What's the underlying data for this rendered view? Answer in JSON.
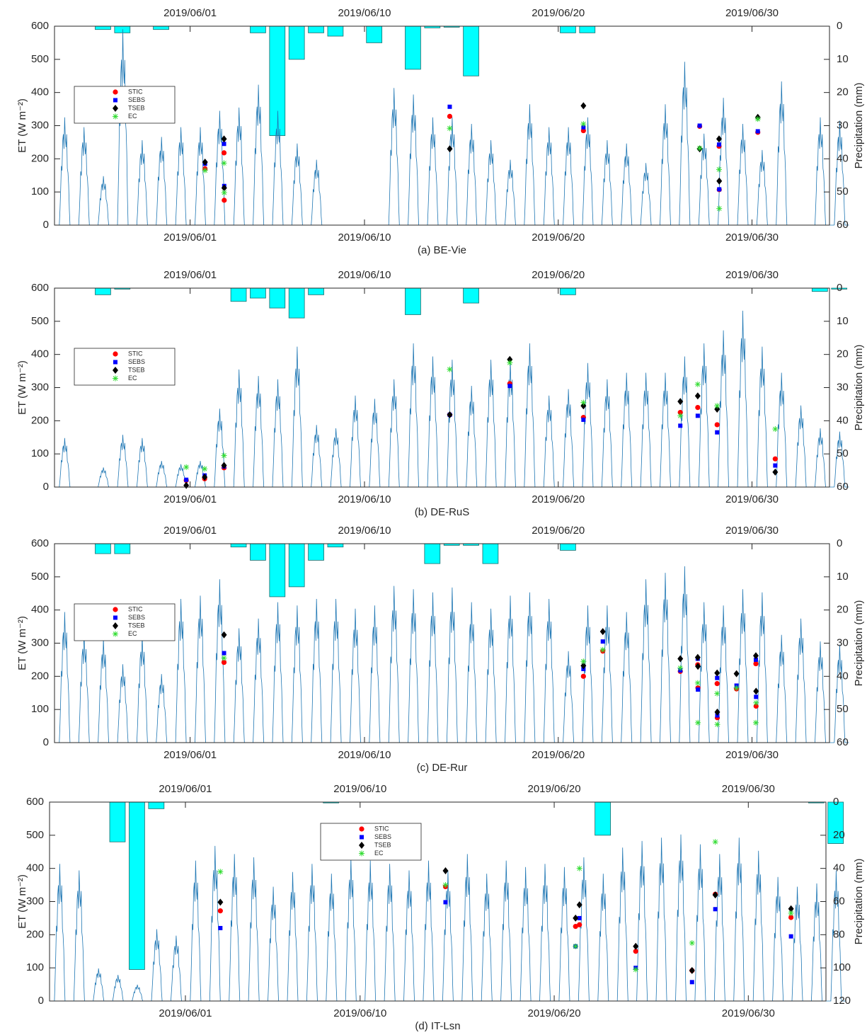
{
  "chart_data": [
    {
      "type": "line",
      "title": "(a) BE-Vie",
      "ylabel": "ET (W m⁻²)",
      "y2label": "Precipitation (mm)",
      "xlim": [
        -7,
        33
      ],
      "xticks": [
        {
          "value": 0,
          "label": "2019/06/01"
        },
        {
          "value": 9,
          "label": "2019/06/10"
        },
        {
          "value": 19,
          "label": "2019/06/20"
        },
        {
          "value": 29,
          "label": "2019/06/30"
        }
      ],
      "ylim": [
        0,
        600
      ],
      "yticks": [
        0,
        100,
        200,
        300,
        400,
        500,
        600
      ],
      "y2lim": [
        0,
        60
      ],
      "y2ticks": [
        0,
        10,
        20,
        30,
        40,
        50,
        60
      ],
      "y2_reversed": true,
      "legend": "upper left",
      "et": {
        "color": "#1f77b4",
        "x": [
          -7,
          -6,
          -5,
          -4,
          -3,
          -2,
          -1,
          0,
          1,
          2,
          3,
          4,
          5,
          6,
          7,
          8,
          9,
          10,
          11,
          12,
          13,
          14,
          15,
          16,
          17,
          18,
          19,
          20,
          21,
          22,
          23,
          24,
          25,
          26,
          27,
          28,
          29,
          30,
          31,
          32,
          33
        ],
        "values": [
          330,
          300,
          150,
          600,
          260,
          270,
          300,
          300,
          350,
          360,
          430,
          350,
          250,
          200,
          0,
          0,
          0,
          420,
          400,
          330,
          330,
          310,
          260,
          200,
          370,
          300,
          300,
          330,
          260,
          250,
          190,
          370,
          500,
          280,
          390,
          310,
          230,
          440,
          0,
          330,
          320
        ]
      },
      "precip": {
        "color": "#00ffff",
        "axis": "y2",
        "x": [
          -5,
          -4,
          -2,
          3,
          4,
          5,
          6,
          7,
          9,
          11,
          12,
          13,
          14,
          19,
          20
        ],
        "values": [
          1,
          2,
          1,
          2,
          33,
          10,
          2,
          3,
          5,
          13,
          0.5,
          0.3,
          15,
          2,
          2
        ]
      },
      "scatter_x": [
        0.77,
        1.75,
        1.76,
        13.4,
        20.3,
        26.3,
        27.3,
        27.31,
        29.3
      ],
      "series": [
        {
          "name": "STIC",
          "color": "#ff0000",
          "marker": "circle",
          "values": [
            170,
            218,
            75,
            328,
            285,
            298,
            238,
            107,
            280
          ]
        },
        {
          "name": "SEBS",
          "color": "#0000ff",
          "marker": "square",
          "values": [
            185,
            245,
            118,
            357,
            295,
            300,
            243,
            108,
            283
          ]
        },
        {
          "name": "TSEB",
          "color": "#000000",
          "marker": "diamond",
          "values": [
            190,
            260,
            112,
            230,
            360,
            230,
            260,
            133,
            325
          ]
        },
        {
          "name": "EC",
          "color": "#33dd33",
          "marker": "asterisk",
          "values": [
            165,
            187,
            98,
            292,
            305,
            232,
            168,
            50,
            320
          ]
        }
      ]
    },
    {
      "type": "line",
      "title": "(b) DE-RuS",
      "ylabel": "ET (W m⁻²)",
      "y2label": "Precipitation (mm)",
      "xlim": [
        -7,
        33
      ],
      "xticks": [
        {
          "value": 0,
          "label": "2019/06/01"
        },
        {
          "value": 9,
          "label": "2019/06/10"
        },
        {
          "value": 19,
          "label": "2019/06/20"
        },
        {
          "value": 29,
          "label": "2019/06/30"
        }
      ],
      "ylim": [
        0,
        600
      ],
      "yticks": [
        0,
        100,
        200,
        300,
        400,
        500,
        600
      ],
      "y2lim": [
        0,
        60
      ],
      "y2ticks": [
        0,
        10,
        20,
        30,
        40,
        50,
        60
      ],
      "y2_reversed": true,
      "legend": "upper left",
      "et": {
        "color": "#1f77b4",
        "x": [
          -7,
          -6,
          -5,
          -4,
          -3,
          -2,
          -1,
          0,
          1,
          2,
          3,
          4,
          5,
          6,
          7,
          8,
          9,
          10,
          11,
          12,
          13,
          14,
          15,
          16,
          17,
          18,
          19,
          20,
          21,
          22,
          23,
          24,
          25,
          26,
          27,
          28,
          29,
          30,
          31,
          32,
          33
        ],
        "values": [
          150,
          0,
          60,
          160,
          150,
          80,
          70,
          80,
          240,
          360,
          340,
          330,
          430,
          190,
          180,
          280,
          270,
          330,
          440,
          400,
          390,
          310,
          390,
          390,
          440,
          280,
          300,
          380,
          330,
          350,
          350,
          350,
          400,
          440,
          480,
          540,
          430,
          350,
          250,
          180,
          170
        ]
      },
      "precip": {
        "color": "#00ffff",
        "axis": "y2",
        "x": [
          -5,
          -4,
          2,
          3,
          4,
          5,
          6,
          11,
          14,
          19,
          32,
          33
        ],
        "values": [
          2,
          0.3,
          4,
          3,
          6,
          9,
          2,
          8,
          4.5,
          2,
          1,
          0.3
        ]
      },
      "scatter_x": [
        -0.2,
        0.75,
        1.75,
        13.4,
        16.5,
        20.3,
        25.3,
        26.2,
        27.2,
        30.2
      ],
      "series": [
        {
          "name": "STIC",
          "color": "#ff0000",
          "marker": "circle",
          "values": [
            20,
            25,
            58,
            218,
            312,
            210,
            225,
            240,
            188,
            85
          ]
        },
        {
          "name": "SEBS",
          "color": "#0000ff",
          "marker": "square",
          "values": [
            22,
            35,
            62,
            218,
            305,
            203,
            185,
            215,
            165,
            65
          ]
        },
        {
          "name": "TSEB",
          "color": "#000000",
          "marker": "diamond",
          "values": [
            5,
            30,
            65,
            218,
            385,
            245,
            258,
            275,
            235,
            45
          ]
        },
        {
          "name": "EC",
          "color": "#33dd33",
          "marker": "asterisk",
          "values": [
            60,
            55,
            95,
            355,
            375,
            255,
            215,
            310,
            245,
            175
          ]
        }
      ]
    },
    {
      "type": "line",
      "title": "(c) DE-Rur",
      "ylabel": "ET (W m⁻²)",
      "y2label": "Precipitation (mm)",
      "xlim": [
        -7,
        33
      ],
      "xticks": [
        {
          "value": 0,
          "label": "2019/06/01"
        },
        {
          "value": 9,
          "label": "2019/06/10"
        },
        {
          "value": 19,
          "label": "2019/06/20"
        },
        {
          "value": 29,
          "label": "2019/06/30"
        }
      ],
      "ylim": [
        0,
        600
      ],
      "yticks": [
        0,
        100,
        200,
        300,
        400,
        500,
        600
      ],
      "y2lim": [
        0,
        60
      ],
      "y2ticks": [
        0,
        10,
        20,
        30,
        40,
        50,
        60
      ],
      "y2_reversed": true,
      "legend": "upper left",
      "et": {
        "color": "#1f77b4",
        "x": [
          -7,
          -6,
          -5,
          -4,
          -3,
          -2,
          -1,
          0,
          1,
          2,
          3,
          4,
          5,
          6,
          7,
          8,
          9,
          10,
          11,
          12,
          13,
          14,
          15,
          16,
          17,
          18,
          19,
          20,
          21,
          22,
          23,
          24,
          25,
          26,
          27,
          28,
          29,
          30,
          31,
          32,
          33
        ],
        "values": [
          400,
          340,
          320,
          240,
          330,
          210,
          440,
          450,
          500,
          350,
          380,
          430,
          420,
          440,
          440,
          410,
          420,
          480,
          470,
          460,
          475,
          430,
          410,
          450,
          460,
          440,
          280,
          420,
          420,
          400,
          500,
          520,
          540,
          430,
          420,
          470,
          460,
          330,
          380,
          310,
          300
        ]
      },
      "precip": {
        "color": "#00ffff",
        "axis": "y2",
        "x": [
          -5,
          -4,
          2,
          3,
          4,
          5,
          6,
          7,
          12,
          13,
          14,
          15,
          19
        ],
        "values": [
          3,
          3,
          1,
          5,
          16,
          13,
          5,
          1,
          6,
          0.5,
          0.5,
          6,
          2
        ]
      },
      "scatter_x": [
        1.75,
        20.3,
        21.3,
        25.3,
        26.2,
        26.21,
        27.2,
        27.21,
        28.2,
        29.2,
        29.21
      ],
      "series": [
        {
          "name": "STIC",
          "color": "#ff0000",
          "marker": "circle",
          "values": [
            242,
            200,
            276,
            215,
            235,
            165,
            178,
            75,
            162,
            238,
            110
          ]
        },
        {
          "name": "SEBS",
          "color": "#0000ff",
          "marker": "square",
          "values": [
            270,
            222,
            305,
            218,
            253,
            160,
            195,
            82,
            172,
            250,
            138
          ]
        },
        {
          "name": "TSEB",
          "color": "#000000",
          "marker": "diamond",
          "values": [
            325,
            232,
            335,
            253,
            257,
            230,
            210,
            92,
            208,
            262,
            155
          ]
        },
        {
          "name": "EC",
          "color": "#33dd33",
          "marker": "asterisk",
          "values": [
            255,
            245,
            280,
            225,
            180,
            60,
            148,
            55,
            165,
            60,
            120
          ]
        }
      ]
    },
    {
      "type": "line",
      "title": "(d) IT-Lsn",
      "ylabel": "ET (W m⁻²)",
      "y2label": "Precipitation (mm)",
      "xlim": [
        -7,
        33
      ],
      "xticks": [
        {
          "value": 0,
          "label": "2019/06/01"
        },
        {
          "value": 9,
          "label": "2019/06/10"
        },
        {
          "value": 19,
          "label": "2019/06/20"
        },
        {
          "value": 29,
          "label": "2019/06/30"
        }
      ],
      "ylim": [
        0,
        600
      ],
      "yticks": [
        0,
        100,
        200,
        300,
        400,
        500,
        600
      ],
      "y2lim": [
        0,
        120
      ],
      "y2ticks": [
        0,
        20,
        40,
        60,
        80,
        100,
        120
      ],
      "y2_reversed": true,
      "legend": "upper center",
      "et": {
        "color": "#1f77b4",
        "x": [
          -7,
          -6,
          -5,
          -4,
          -3,
          -2,
          -1,
          0,
          1,
          2,
          3,
          4,
          5,
          6,
          7,
          8,
          9,
          10,
          11,
          12,
          13,
          14,
          15,
          16,
          17,
          18,
          19,
          20,
          21,
          22,
          23,
          24,
          25,
          26,
          27,
          28,
          29,
          30,
          31,
          32,
          33
        ],
        "values": [
          420,
          400,
          100,
          80,
          50,
          220,
          200,
          430,
          475,
          450,
          440,
          350,
          395,
          420,
          390,
          440,
          430,
          420,
          400,
          430,
          400,
          450,
          390,
          430,
          410,
          420,
          410,
          440,
          390,
          470,
          490,
          500,
          510,
          480,
          450,
          500,
          460,
          380,
          350,
          360,
          400
        ]
      },
      "precip": {
        "color": "#00ffff",
        "axis": "y2",
        "x": [
          -4,
          -3,
          -2,
          7,
          21,
          32,
          33
        ],
        "values": [
          24,
          101,
          4,
          0.5,
          20,
          0.5,
          25
        ]
      },
      "scatter_x": [
        1.8,
        13.4,
        20.1,
        20.3,
        23.2,
        26.1,
        27.3,
        31.2
      ],
      "series": [
        {
          "name": "STIC",
          "color": "#ff0000",
          "marker": "circle",
          "values": [
            272,
            345,
            225,
            230,
            150,
            92,
            322,
            252
          ]
        },
        {
          "name": "SEBS",
          "color": "#0000ff",
          "marker": "square",
          "values": [
            220,
            298,
            165,
            250,
            100,
            57,
            277,
            195
          ]
        },
        {
          "name": "TSEB",
          "color": "#000000",
          "marker": "diamond",
          "values": [
            298,
            393,
            250,
            290,
            165,
            92,
            320,
            278
          ]
        },
        {
          "name": "EC",
          "color": "#33dd33",
          "marker": "asterisk",
          "values": [
            390,
            350,
            165,
            400,
            95,
            175,
            480,
            265
          ]
        }
      ]
    }
  ]
}
